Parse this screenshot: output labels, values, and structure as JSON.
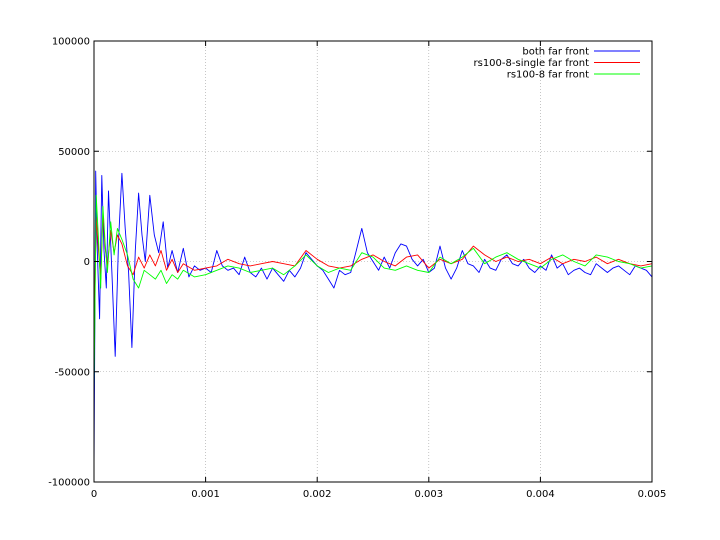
{
  "chart_data": {
    "type": "line",
    "title": "",
    "xlabel": "",
    "ylabel": "",
    "xlim": [
      0,
      0.005
    ],
    "ylim": [
      -100000,
      100000
    ],
    "grid": true,
    "legend_position": "top-right",
    "x_ticks": [
      {
        "value": 0,
        "label": "0"
      },
      {
        "value": 0.001,
        "label": "0.001"
      },
      {
        "value": 0.002,
        "label": "0.002"
      },
      {
        "value": 0.003,
        "label": "0.003"
      },
      {
        "value": 0.004,
        "label": "0.004"
      },
      {
        "value": 0.005,
        "label": "0.005"
      }
    ],
    "y_ticks": [
      {
        "value": -100000,
        "label": "-100000"
      },
      {
        "value": -50000,
        "label": "-50000"
      },
      {
        "value": 0,
        "label": "0"
      },
      {
        "value": 50000,
        "label": "50000"
      },
      {
        "value": 100000,
        "label": "100000"
      }
    ],
    "series": [
      {
        "name": "both far front",
        "color": "#0000ff",
        "x": [
          0,
          1.5e-05,
          3e-05,
          5e-05,
          7e-05,
          9e-05,
          0.00011,
          0.00013,
          0.00016,
          0.00019,
          0.00022,
          0.00025,
          0.00028,
          0.00031,
          0.00034,
          0.00037,
          0.0004,
          0.00043,
          0.00046,
          0.0005,
          0.00054,
          0.00058,
          0.00062,
          0.00066,
          0.0007,
          0.00075,
          0.0008,
          0.00085,
          0.0009,
          0.00095,
          0.001,
          0.00105,
          0.0011,
          0.00115,
          0.0012,
          0.00125,
          0.0013,
          0.00135,
          0.0014,
          0.00145,
          0.0015,
          0.00155,
          0.0016,
          0.00165,
          0.0017,
          0.00175,
          0.0018,
          0.00185,
          0.0019,
          0.00195,
          0.002,
          0.00205,
          0.0021,
          0.00215,
          0.0022,
          0.00225,
          0.0023,
          0.00235,
          0.0024,
          0.00245,
          0.0025,
          0.00255,
          0.0026,
          0.00265,
          0.0027,
          0.00275,
          0.0028,
          0.00285,
          0.0029,
          0.00295,
          0.003,
          0.00305,
          0.0031,
          0.00315,
          0.0032,
          0.00325,
          0.0033,
          0.00335,
          0.0034,
          0.00345,
          0.0035,
          0.00355,
          0.0036,
          0.00365,
          0.0037,
          0.00375,
          0.0038,
          0.00385,
          0.0039,
          0.00395,
          0.004,
          0.00405,
          0.0041,
          0.00415,
          0.0042,
          0.00425,
          0.0043,
          0.00435,
          0.0044,
          0.00445,
          0.0045,
          0.00455,
          0.0046,
          0.00465,
          0.0047,
          0.00475,
          0.0048,
          0.00485,
          0.0049,
          0.00495,
          0.005
        ],
        "y": [
          -95000,
          41000,
          5000,
          -26000,
          39000,
          5000,
          -12000,
          32000,
          -5000,
          -43000,
          10000,
          40000,
          15000,
          -5000,
          -39000,
          5000,
          31000,
          12000,
          0,
          30000,
          12000,
          4000,
          18000,
          -3000,
          5000,
          -5000,
          6000,
          -7000,
          -2000,
          -4000,
          -3000,
          -5000,
          5000,
          -2000,
          -4000,
          -3000,
          -6000,
          2000,
          -5000,
          -7000,
          -3000,
          -8000,
          -3000,
          -6000,
          -9000,
          -4000,
          -7000,
          -3000,
          4000,
          1000,
          -2000,
          -4000,
          -8000,
          -12000,
          -4000,
          -6000,
          -5000,
          5000,
          15000,
          4000,
          0,
          -4000,
          2000,
          -3000,
          4000,
          8000,
          7000,
          1000,
          -2000,
          1000,
          -5000,
          -3000,
          7000,
          -3000,
          -8000,
          -3000,
          5000,
          -1000,
          -2000,
          -5000,
          1000,
          -3000,
          -4000,
          1000,
          3000,
          -1000,
          -2000,
          1000,
          -3000,
          -5000,
          -2000,
          -4000,
          3000,
          -3000,
          -1000,
          -6000,
          -4000,
          -3000,
          -5000,
          -6000,
          -1000,
          -3000,
          -5000,
          -3000,
          -2000,
          -4000,
          -6000,
          -2000,
          -3000,
          -4000,
          -7000
        ]
      },
      {
        "name": "rs100-8-single far front",
        "color": "#ff0000",
        "x": [
          0,
          2e-05,
          4e-05,
          6e-05,
          8e-05,
          0.0001,
          0.00012,
          0.00015,
          0.00018,
          0.00021,
          0.00025,
          0.0003,
          0.00035,
          0.0004,
          0.00045,
          0.0005,
          0.00055,
          0.0006,
          0.00065,
          0.0007,
          0.00075,
          0.0008,
          0.0009,
          0.001,
          0.0011,
          0.0012,
          0.0013,
          0.0014,
          0.0015,
          0.0016,
          0.0017,
          0.0018,
          0.0019,
          0.002,
          0.0021,
          0.0022,
          0.0023,
          0.0024,
          0.0025,
          0.0026,
          0.0027,
          0.0028,
          0.0029,
          0.003,
          0.0031,
          0.0032,
          0.0033,
          0.0034,
          0.0035,
          0.0036,
          0.0037,
          0.0038,
          0.0039,
          0.004,
          0.0041,
          0.0042,
          0.0043,
          0.0044,
          0.0045,
          0.0046,
          0.0047,
          0.0048,
          0.0049,
          0.005
        ],
        "y": [
          -40000,
          20000,
          5000,
          -8000,
          22000,
          6000,
          -2000,
          14000,
          4000,
          12000,
          8000,
          -2000,
          -6000,
          2000,
          -3000,
          3000,
          -2000,
          5000,
          -4000,
          1000,
          -5000,
          -1000,
          -4000,
          -3000,
          -2000,
          1000,
          -1000,
          -2000,
          -1000,
          0,
          -1000,
          -2000,
          5000,
          1000,
          -2000,
          -3000,
          -2000,
          1000,
          3000,
          0,
          -2000,
          2000,
          3000,
          -3000,
          1000,
          -1000,
          1000,
          7000,
          3000,
          0,
          2000,
          0,
          1000,
          -1000,
          2000,
          -1000,
          1000,
          0,
          2000,
          -1000,
          1000,
          -1000,
          -2000,
          -1000
        ]
      },
      {
        "name": "rs100-8 far front",
        "color": "#00ff00",
        "x": [
          0,
          2e-05,
          4e-05,
          6e-05,
          8e-05,
          0.0001,
          0.00012,
          0.00015,
          0.00018,
          0.00021,
          0.00025,
          0.0003,
          0.00035,
          0.0004,
          0.00045,
          0.0005,
          0.00055,
          0.0006,
          0.00065,
          0.0007,
          0.00075,
          0.0008,
          0.0009,
          0.001,
          0.0011,
          0.0012,
          0.0013,
          0.0014,
          0.0015,
          0.0016,
          0.0017,
          0.0018,
          0.0019,
          0.002,
          0.0021,
          0.0022,
          0.0023,
          0.0024,
          0.0025,
          0.0026,
          0.0027,
          0.0028,
          0.0029,
          0.003,
          0.0031,
          0.0032,
          0.0033,
          0.0034,
          0.0035,
          0.0036,
          0.0037,
          0.0038,
          0.0039,
          0.004,
          0.0041,
          0.0042,
          0.0043,
          0.0044,
          0.0045,
          0.0046,
          0.0047,
          0.0048,
          0.0049,
          0.005
        ],
        "y": [
          -60000,
          30000,
          10000,
          -12000,
          25000,
          8000,
          -5000,
          18000,
          3000,
          15000,
          10000,
          3000,
          -8000,
          -12000,
          -4000,
          -6000,
          -8000,
          -4000,
          -10000,
          -6000,
          -8000,
          -4000,
          -7000,
          -6000,
          -4000,
          -2000,
          -3000,
          -5000,
          -4000,
          -3000,
          -6000,
          -2000,
          3000,
          -2000,
          -5000,
          -3000,
          -4000,
          4000,
          2000,
          -3000,
          -4000,
          -2000,
          -4000,
          -5000,
          2000,
          -1000,
          2000,
          6000,
          -1000,
          2000,
          4000,
          1000,
          -1000,
          -3000,
          1000,
          3000,
          0,
          -2000,
          3000,
          2000,
          0,
          -1000,
          -3000,
          -2000
        ]
      }
    ]
  }
}
